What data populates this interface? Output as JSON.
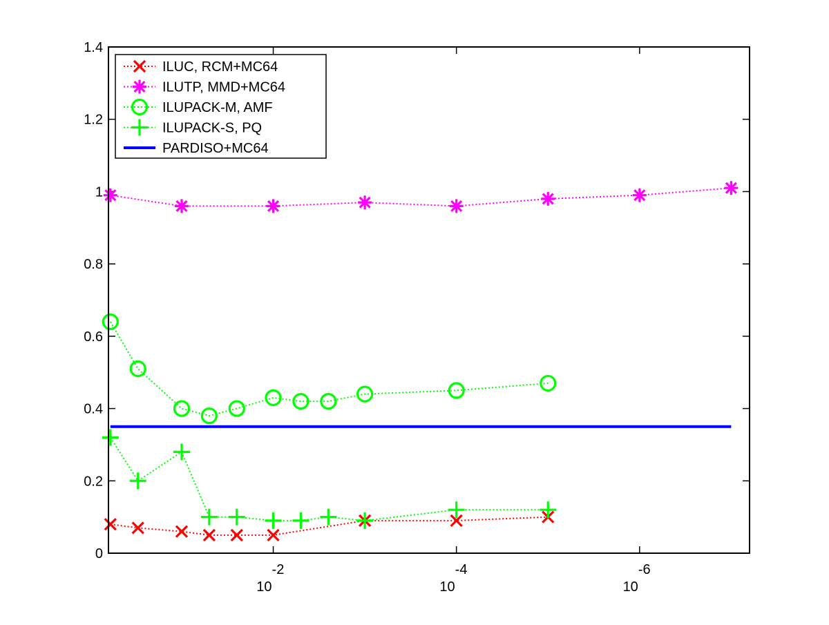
{
  "chart_data": {
    "type": "line",
    "title": "",
    "xlabel": "",
    "ylabel": "",
    "x_scale": "log (decreasing)",
    "xlim": [
      0.63,
      6.3e-08
    ],
    "ylim": [
      0,
      1.4
    ],
    "yticks": [
      {
        "value": 0,
        "label": "0"
      },
      {
        "value": 0.2,
        "label": "0.2"
      },
      {
        "value": 0.4,
        "label": "0.4"
      },
      {
        "value": 0.6,
        "label": "0.6"
      },
      {
        "value": 0.8,
        "label": "0.8"
      },
      {
        "value": 1.0,
        "label": "1"
      },
      {
        "value": 1.2,
        "label": "1.2"
      },
      {
        "value": 1.4,
        "label": "1.4"
      }
    ],
    "xticks": [
      {
        "value": 0.01,
        "base": "10",
        "exponent": "-2"
      },
      {
        "value": 0.0001,
        "base": "10",
        "exponent": "-4"
      },
      {
        "value": 1e-06,
        "base": "10",
        "exponent": "-6"
      }
    ],
    "grid": false,
    "legend_position": "top-left",
    "series": [
      {
        "name": "ILUC, RCM+MC64",
        "color": "#ff0000",
        "marker": "x",
        "line_style": "dotted",
        "points": [
          [
            0.6,
            0.08
          ],
          [
            0.3,
            0.07
          ],
          [
            0.1,
            0.06
          ],
          [
            0.05,
            0.05
          ],
          [
            0.025,
            0.05
          ],
          [
            0.01,
            0.05
          ],
          [
            0.001,
            0.09
          ],
          [
            0.0001,
            0.09
          ],
          [
            1e-05,
            0.1
          ]
        ]
      },
      {
        "name": "ILUTP, MMD+MC64",
        "color": "#ff00ff",
        "marker": "asterisk",
        "line_style": "dotted",
        "points": [
          [
            0.6,
            0.99
          ],
          [
            0.1,
            0.96
          ],
          [
            0.01,
            0.96
          ],
          [
            0.001,
            0.97
          ],
          [
            0.0001,
            0.96
          ],
          [
            1e-05,
            0.98
          ],
          [
            1e-06,
            0.99
          ],
          [
            1e-07,
            1.01
          ]
        ]
      },
      {
        "name": "ILUPACK-M, AMF",
        "color": "#00ff00",
        "marker": "circle",
        "line_style": "dotted",
        "points": [
          [
            0.6,
            0.64
          ],
          [
            0.3,
            0.51
          ],
          [
            0.1,
            0.4
          ],
          [
            0.05,
            0.38
          ],
          [
            0.025,
            0.4
          ],
          [
            0.01,
            0.43
          ],
          [
            0.005,
            0.42
          ],
          [
            0.0025,
            0.42
          ],
          [
            0.001,
            0.44
          ],
          [
            0.0001,
            0.45
          ],
          [
            1e-05,
            0.47
          ]
        ]
      },
      {
        "name": "ILUPACK-S, PQ",
        "color": "#00ff00",
        "marker": "plus",
        "line_style": "dotted",
        "points": [
          [
            0.6,
            0.32
          ],
          [
            0.3,
            0.2
          ],
          [
            0.1,
            0.28
          ],
          [
            0.05,
            0.1
          ],
          [
            0.025,
            0.1
          ],
          [
            0.01,
            0.09
          ],
          [
            0.005,
            0.09
          ],
          [
            0.0025,
            0.1
          ],
          [
            0.001,
            0.09
          ],
          [
            0.0001,
            0.12
          ],
          [
            1e-05,
            0.12
          ]
        ]
      },
      {
        "name": "PARDISO+MC64",
        "color": "#0000ff",
        "marker": "none",
        "line_style": "solid",
        "points": [
          [
            0.6,
            0.35
          ],
          [
            1e-07,
            0.35
          ]
        ]
      }
    ]
  }
}
